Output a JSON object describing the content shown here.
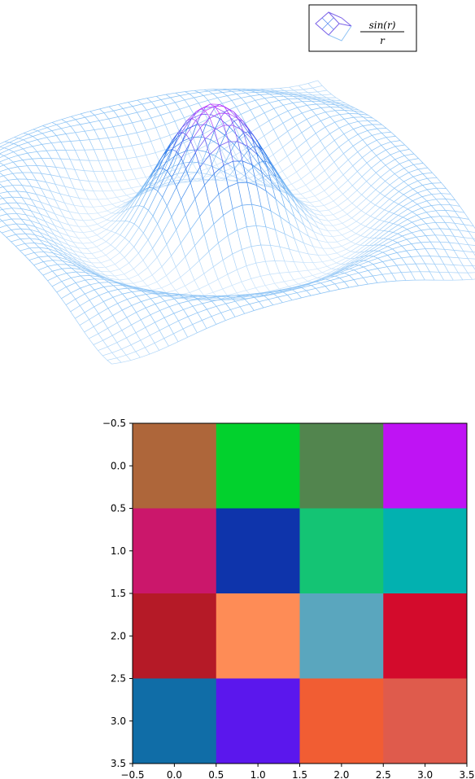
{
  "chart_data": [
    {
      "type": "surface",
      "function": "sin(r)/r",
      "grid_lines": "wireframe",
      "legend": {
        "position": "top-right",
        "numerator": "sin(r)",
        "denominator": "r"
      },
      "colormap": [
        "#cfe6fb",
        "#79b9f3",
        "#1f6fe8",
        "#cc33ff"
      ]
    },
    {
      "type": "heatmap",
      "xlim": [
        -0.5,
        3.5
      ],
      "ylim": [
        3.5,
        -0.5
      ],
      "x_ticks": [
        "−0.5",
        "0.0",
        "0.5",
        "1.0",
        "1.5",
        "2.0",
        "2.5",
        "3.0",
        "3.5"
      ],
      "y_ticks": [
        "−0.5",
        "0.0",
        "0.5",
        "1.0",
        "1.5",
        "2.0",
        "2.5",
        "3.0",
        "3.5"
      ],
      "cells": [
        [
          "#ae663a",
          "#02d12d",
          "#52854e",
          "#bf13f4"
        ],
        [
          "#cb176b",
          "#0e34ab",
          "#14c474",
          "#02b1b0"
        ],
        [
          "#b51a27",
          "#fe8c56",
          "#5aa6be",
          "#d30b2c"
        ],
        [
          "#106da7",
          "#5b17ed",
          "#f15d33",
          "#df5b4c"
        ]
      ]
    }
  ]
}
